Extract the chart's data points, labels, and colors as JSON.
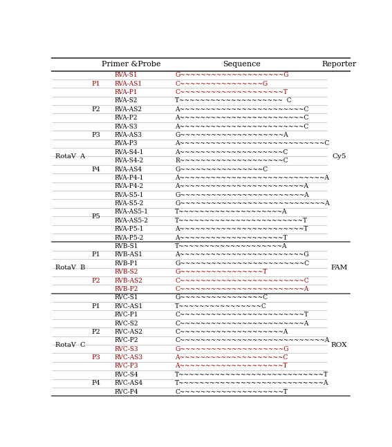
{
  "headers": [
    "Primer &Probe",
    "Sequence",
    "Reporter"
  ],
  "groups": [
    {
      "group_label": "RotaV  A",
      "reporter": "Cy5",
      "subgroups": [
        {
          "pair_label": "P1",
          "pair_highlight": true,
          "rows": [
            {
              "name": "RVA-S1",
              "seq": "G~~~~~~~~~~~~~~~~~~~~G",
              "highlight": true
            },
            {
              "name": "RVA-AS1",
              "seq": "C~~~~~~~~~~~~~~~~G",
              "highlight": true
            },
            {
              "name": "RVA-P1",
              "seq": "C~~~~~~~~~~~~~~~~~~~~T",
              "highlight": true
            }
          ]
        },
        {
          "pair_label": "P2",
          "pair_highlight": false,
          "rows": [
            {
              "name": "RVA-S2",
              "seq": "T~~~~~~~~~~~~~~~~~~~~  C",
              "highlight": false
            },
            {
              "name": "RVA-AS2",
              "seq": "A~~~~~~~~~~~~~~~~~~~~~~~~C",
              "highlight": false
            },
            {
              "name": "RVA-P2",
              "seq": "A~~~~~~~~~~~~~~~~~~~~~~~~C",
              "highlight": false
            }
          ]
        },
        {
          "pair_label": "P3",
          "pair_highlight": false,
          "rows": [
            {
              "name": "RVA-S3",
              "seq": "A~~~~~~~~~~~~~~~~~~~~~~~~C",
              "highlight": false
            },
            {
              "name": "RVA-AS3",
              "seq": "G~~~~~~~~~~~~~~~~~~~~A",
              "highlight": false
            },
            {
              "name": "RVA-P3",
              "seq": "A~~~~~~~~~~~~~~~~~~~~~~~~~~~~C",
              "highlight": false
            }
          ]
        },
        {
          "pair_label": "P4",
          "pair_highlight": false,
          "rows": [
            {
              "name": "RVA-S4-1",
              "seq": "A~~~~~~~~~~~~~~~~~~~~C",
              "highlight": false
            },
            {
              "name": "RVA-S4-2",
              "seq": "R~~~~~~~~~~~~~~~~~~~~C",
              "highlight": false
            },
            {
              "name": "RVA-AS4",
              "seq": "G~~~~~~~~~~~~~~~~C",
              "highlight": false
            },
            {
              "name": "RVA-P4-1",
              "seq": "A~~~~~~~~~~~~~~~~~~~~~~~~~~~~A",
              "highlight": false
            },
            {
              "name": "RVA-P4-2",
              "seq": "A~~~~~~~~~~~~~~~~~~~~~~~~A",
              "highlight": false
            }
          ]
        },
        {
          "pair_label": "P5",
          "pair_highlight": false,
          "rows": [
            {
              "name": "RVA-S5-1",
              "seq": "G~~~~~~~~~~~~~~~~~~~~~~~~A",
              "highlight": false
            },
            {
              "name": "RVA-S5-2",
              "seq": "G~~~~~~~~~~~~~~~~~~~~~~~~~~~~A",
              "highlight": false
            },
            {
              "name": "RVA-AS5-1",
              "seq": "T~~~~~~~~~~~~~~~~~~~~A",
              "highlight": false
            },
            {
              "name": "RVA-AS5-2",
              "seq": "T~~~~~~~~~~~~~~~~~~~~~~~~T",
              "highlight": false
            },
            {
              "name": "RVA-P5-1",
              "seq": "A~~~~~~~~~~~~~~~~~~~~~~~~T",
              "highlight": false
            },
            {
              "name": "RVA-P5-2",
              "seq": "A~~~~~~~~~~~~~~~~~~~~T",
              "highlight": false
            }
          ]
        }
      ]
    },
    {
      "group_label": "RotaV  B",
      "reporter": "FAM",
      "subgroups": [
        {
          "pair_label": "P1",
          "pair_highlight": false,
          "rows": [
            {
              "name": "RVB-S1",
              "seq": "T~~~~~~~~~~~~~~~~~~~~A",
              "highlight": false
            },
            {
              "name": "RVB-AS1",
              "seq": "A~~~~~~~~~~~~~~~~~~~~~~~~G",
              "highlight": false
            },
            {
              "name": "RVB-P1",
              "seq": "G~~~~~~~~~~~~~~~~~~~~~~~~C",
              "highlight": false
            }
          ]
        },
        {
          "pair_label": "P2",
          "pair_highlight": true,
          "rows": [
            {
              "name": "RVB-S2",
              "seq": "G~~~~~~~~~~~~~~~~T",
              "highlight": true
            },
            {
              "name": "RVB-AS2",
              "seq": "C~~~~~~~~~~~~~~~~~~~~~~~~C",
              "highlight": true
            },
            {
              "name": "RVB-P2",
              "seq": "C~~~~~~~~~~~~~~~~~~~~~~~~A",
              "highlight": true
            }
          ]
        }
      ]
    },
    {
      "group_label": "RotaV  C",
      "reporter": "ROX",
      "subgroups": [
        {
          "pair_label": "P1",
          "pair_highlight": false,
          "rows": [
            {
              "name": "RVC-S1",
              "seq": "G~~~~~~~~~~~~~~~~C",
              "highlight": false
            },
            {
              "name": "RVC-AS1",
              "seq": "T~~~~~~~~~~~~~~~~C",
              "highlight": false
            },
            {
              "name": "RVC-P1",
              "seq": "C~~~~~~~~~~~~~~~~~~~~~~~~T",
              "highlight": false
            }
          ]
        },
        {
          "pair_label": "P2",
          "pair_highlight": false,
          "rows": [
            {
              "name": "RVC-S2",
              "seq": "C~~~~~~~~~~~~~~~~~~~~~~~~A",
              "highlight": false
            },
            {
              "name": "RVC-AS2",
              "seq": "C~~~~~~~~~~~~~~~~~~~~A",
              "highlight": false
            },
            {
              "name": "RVC-P2",
              "seq": "C~~~~~~~~~~~~~~~~~~~~~~~~~~~~A",
              "highlight": false
            }
          ]
        },
        {
          "pair_label": "P3",
          "pair_highlight": true,
          "rows": [
            {
              "name": "RVC-S3",
              "seq": "G~~~~~~~~~~~~~~~~~~~~G",
              "highlight": true
            },
            {
              "name": "RVC-AS3",
              "seq": "A~~~~~~~~~~~~~~~~~~~~C",
              "highlight": true
            },
            {
              "name": "RVC-P3",
              "seq": "A~~~~~~~~~~~~~~~~~~~~T",
              "highlight": true
            }
          ]
        },
        {
          "pair_label": "P4",
          "pair_highlight": false,
          "rows": [
            {
              "name": "RVC-S4",
              "seq": "T~~~~~~~~~~~~~~~~~~~~~~~~~~~~T",
              "highlight": false
            },
            {
              "name": "RVC-AS4",
              "seq": "T~~~~~~~~~~~~~~~~~~~~~~~~~~~~A",
              "highlight": false
            },
            {
              "name": "RVC-P4",
              "seq": "C~~~~~~~~~~~~~~~~~~~~T",
              "highlight": false
            }
          ]
        }
      ]
    }
  ],
  "highlight_color": "#8B0000",
  "normal_color": "#000000",
  "line_color": "#aaaaaa",
  "thick_line_color": "#555555",
  "font_size": 6.5,
  "header_font_size": 8.0,
  "col_group": 0.02,
  "col_pair": 0.155,
  "col_name": 0.215,
  "col_seq": 0.415,
  "col_reporter": 0.93
}
